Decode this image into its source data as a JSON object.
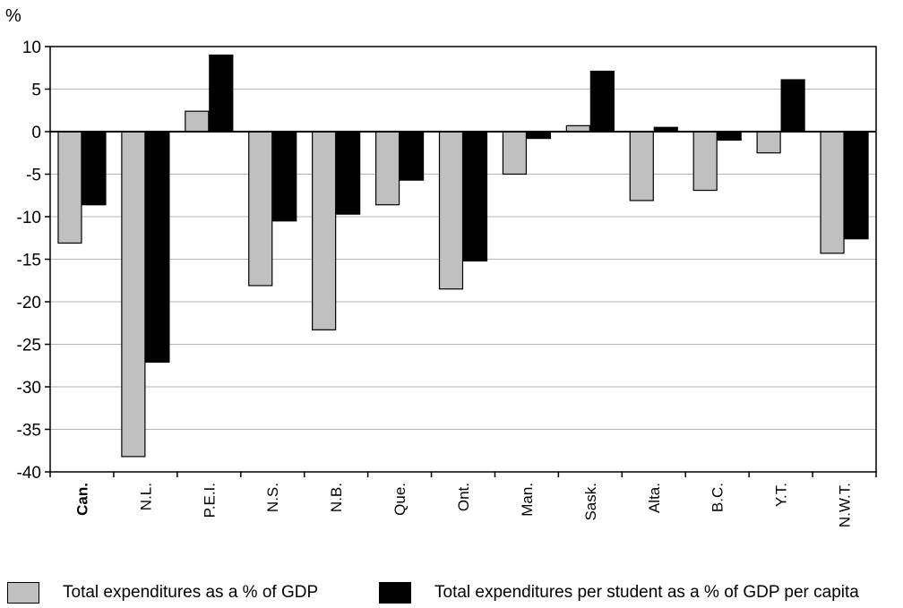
{
  "chart_data": {
    "type": "bar",
    "unit_label": "%",
    "categories": [
      "Can.",
      "N.L.",
      "P.E.I.",
      "N.S.",
      "N.B.",
      "Que.",
      "Ont.",
      "Man.",
      "Sask.",
      "Alta.",
      "B.C.",
      "Y.T.",
      "N.W.T."
    ],
    "bold_categories": [
      "Can."
    ],
    "series": [
      {
        "name": "Total expenditures as a % of GDP",
        "color": "#c0c0c0",
        "values": [
          -13.1,
          -38.2,
          2.4,
          -18.1,
          -23.3,
          -8.6,
          -18.5,
          -5.0,
          0.7,
          -8.1,
          -6.9,
          -2.5,
          -14.3
        ]
      },
      {
        "name": "Total expenditures per student as a % of GDP per capita",
        "color": "#000000",
        "values": [
          -8.6,
          -27.1,
          9.0,
          -10.5,
          -9.7,
          -5.7,
          -15.2,
          -0.8,
          7.1,
          0.5,
          -1.0,
          6.1,
          -12.6
        ]
      }
    ],
    "ylim": [
      -40,
      10
    ],
    "yticks": [
      10,
      5,
      0,
      -5,
      -10,
      -15,
      -20,
      -25,
      -30,
      -35,
      -40
    ],
    "grid": true,
    "legend_position": "bottom"
  }
}
